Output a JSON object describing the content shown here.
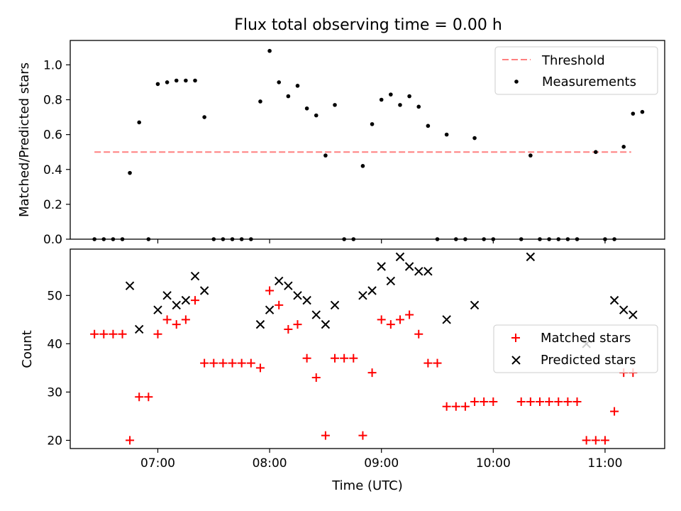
{
  "chart_data": [
    {
      "type": "scatter",
      "title": "Flux total observing time = 0.00 h",
      "xlabel": "",
      "ylabel": "Matched/Predicted stars",
      "xlim": [
        "06:13",
        "11:32"
      ],
      "ylim": [
        0,
        1.14
      ],
      "yticks": [
        "0.0",
        "0.2",
        "0.4",
        "0.6",
        "0.8",
        "1.0"
      ],
      "xticks": [
        "07:00",
        "08:00",
        "09:00",
        "10:00",
        "11:00"
      ],
      "show_xticklabels": false,
      "grid": false,
      "legend": "top-right",
      "threshold": {
        "name": "Threshold",
        "value": 0.5,
        "x_start": "06:26",
        "x_end": "11:14",
        "color": "#ff8080"
      },
      "series": [
        {
          "name": "Measurements",
          "marker": "dot",
          "color": "#000000",
          "points": [
            [
              "06:26",
              0
            ],
            [
              "06:31",
              0
            ],
            [
              "06:36",
              0
            ],
            [
              "06:41",
              0
            ],
            [
              "06:45",
              0.38
            ],
            [
              "06:50",
              0.67
            ],
            [
              "06:55",
              0
            ],
            [
              "07:00",
              0.89
            ],
            [
              "07:05",
              0.9
            ],
            [
              "07:10",
              0.91
            ],
            [
              "07:15",
              0.91
            ],
            [
              "07:20",
              0.91
            ],
            [
              "07:25",
              0.7
            ],
            [
              "07:30",
              0
            ],
            [
              "07:35",
              0
            ],
            [
              "07:40",
              0
            ],
            [
              "07:45",
              0
            ],
            [
              "07:50",
              0
            ],
            [
              "07:55",
              0.79
            ],
            [
              "08:00",
              1.08
            ],
            [
              "08:05",
              0.9
            ],
            [
              "08:10",
              0.82
            ],
            [
              "08:15",
              0.88
            ],
            [
              "08:20",
              0.75
            ],
            [
              "08:25",
              0.71
            ],
            [
              "08:30",
              0.48
            ],
            [
              "08:35",
              0.77
            ],
            [
              "08:40",
              0
            ],
            [
              "08:45",
              0
            ],
            [
              "08:50",
              0.42
            ],
            [
              "08:55",
              0.66
            ],
            [
              "09:00",
              0.8
            ],
            [
              "09:05",
              0.83
            ],
            [
              "09:10",
              0.77
            ],
            [
              "09:15",
              0.82
            ],
            [
              "09:20",
              0.76
            ],
            [
              "09:25",
              0.65
            ],
            [
              "09:30",
              0
            ],
            [
              "09:35",
              0.6
            ],
            [
              "09:40",
              0
            ],
            [
              "09:45",
              0
            ],
            [
              "09:50",
              0.58
            ],
            [
              "09:55",
              0
            ],
            [
              "10:00",
              0
            ],
            [
              "10:15",
              0
            ],
            [
              "10:20",
              0.48
            ],
            [
              "10:25",
              0
            ],
            [
              "10:30",
              0
            ],
            [
              "10:35",
              0
            ],
            [
              "10:40",
              0
            ],
            [
              "10:45",
              0
            ],
            [
              "10:55",
              0.5
            ],
            [
              "11:00",
              0
            ],
            [
              "11:05",
              0
            ],
            [
              "11:10",
              0.53
            ],
            [
              "11:15",
              0.72
            ],
            [
              "11:20",
              0.73
            ]
          ]
        }
      ]
    },
    {
      "type": "scatter",
      "title": "",
      "xlabel": "Time (UTC)",
      "ylabel": "Count",
      "xlim": [
        "06:13",
        "11:32"
      ],
      "ylim": [
        18.3,
        59.6
      ],
      "yticks": [
        "20",
        "30",
        "40",
        "50"
      ],
      "xticks": [
        "07:00",
        "08:00",
        "09:00",
        "10:00",
        "11:00"
      ],
      "grid": false,
      "legend": "center-right",
      "series": [
        {
          "name": "Matched stars",
          "marker": "plus",
          "color": "#ff0000",
          "points": [
            [
              "06:26",
              42
            ],
            [
              "06:31",
              42
            ],
            [
              "06:36",
              42
            ],
            [
              "06:41",
              42
            ],
            [
              "06:45",
              20
            ],
            [
              "06:50",
              29
            ],
            [
              "06:55",
              29
            ],
            [
              "07:00",
              42
            ],
            [
              "07:05",
              45
            ],
            [
              "07:10",
              44
            ],
            [
              "07:15",
              45
            ],
            [
              "07:20",
              49
            ],
            [
              "07:25",
              36
            ],
            [
              "07:30",
              36
            ],
            [
              "07:35",
              36
            ],
            [
              "07:40",
              36
            ],
            [
              "07:45",
              36
            ],
            [
              "07:50",
              36
            ],
            [
              "07:55",
              35
            ],
            [
              "08:00",
              51
            ],
            [
              "08:05",
              48
            ],
            [
              "08:10",
              43
            ],
            [
              "08:15",
              44
            ],
            [
              "08:20",
              37
            ],
            [
              "08:25",
              33
            ],
            [
              "08:30",
              21
            ],
            [
              "08:35",
              37
            ],
            [
              "08:40",
              37
            ],
            [
              "08:45",
              37
            ],
            [
              "08:50",
              21
            ],
            [
              "08:55",
              34
            ],
            [
              "09:00",
              45
            ],
            [
              "09:05",
              44
            ],
            [
              "09:10",
              45
            ],
            [
              "09:15",
              46
            ],
            [
              "09:20",
              42
            ],
            [
              "09:25",
              36
            ],
            [
              "09:30",
              36
            ],
            [
              "09:35",
              27
            ],
            [
              "09:40",
              27
            ],
            [
              "09:45",
              27
            ],
            [
              "09:50",
              28
            ],
            [
              "09:55",
              28
            ],
            [
              "10:00",
              28
            ],
            [
              "10:15",
              28
            ],
            [
              "10:20",
              28
            ],
            [
              "10:25",
              28
            ],
            [
              "10:30",
              28
            ],
            [
              "10:35",
              28
            ],
            [
              "10:40",
              28
            ],
            [
              "10:45",
              28
            ],
            [
              "10:50",
              20
            ],
            [
              "10:55",
              20
            ],
            [
              "11:00",
              20
            ],
            [
              "11:05",
              26
            ],
            [
              "11:10",
              34
            ],
            [
              "11:15",
              34
            ]
          ]
        },
        {
          "name": "Predicted stars",
          "marker": "x",
          "color": "#000000",
          "points": [
            [
              "06:45",
              52
            ],
            [
              "06:50",
              43
            ],
            [
              "07:00",
              47
            ],
            [
              "07:05",
              50
            ],
            [
              "07:10",
              48
            ],
            [
              "07:15",
              49
            ],
            [
              "07:20",
              54
            ],
            [
              "07:25",
              51
            ],
            [
              "07:55",
              44
            ],
            [
              "08:00",
              47
            ],
            [
              "08:05",
              53
            ],
            [
              "08:10",
              52
            ],
            [
              "08:15",
              50
            ],
            [
              "08:20",
              49
            ],
            [
              "08:25",
              46
            ],
            [
              "08:30",
              44
            ],
            [
              "08:35",
              48
            ],
            [
              "08:50",
              50
            ],
            [
              "08:55",
              51
            ],
            [
              "09:00",
              56
            ],
            [
              "09:05",
              53
            ],
            [
              "09:10",
              58
            ],
            [
              "09:15",
              56
            ],
            [
              "09:20",
              55
            ],
            [
              "09:25",
              55
            ],
            [
              "09:35",
              45
            ],
            [
              "09:50",
              48
            ],
            [
              "10:20",
              58
            ],
            [
              "10:50",
              40
            ],
            [
              "11:05",
              49
            ],
            [
              "11:10",
              47
            ],
            [
              "11:15",
              46
            ]
          ]
        }
      ]
    }
  ]
}
